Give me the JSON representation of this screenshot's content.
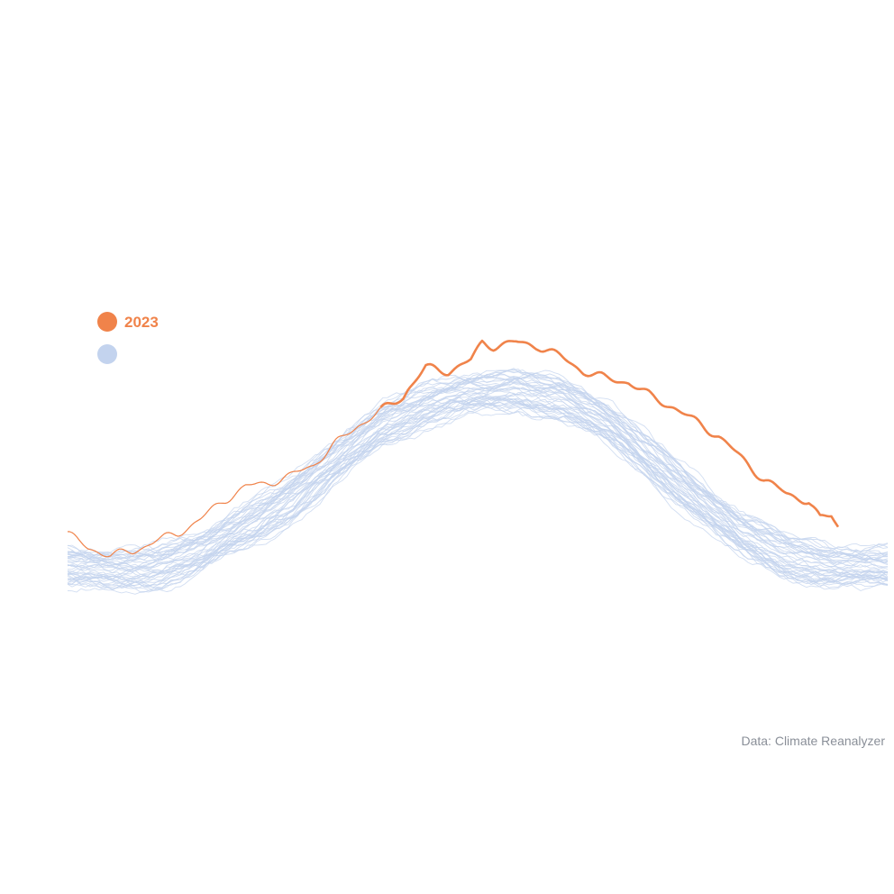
{
  "chart_data": {
    "type": "line",
    "title": "",
    "xlabel": "",
    "ylabel": "",
    "grid": false,
    "legend": {
      "position": "top-left",
      "entries": [
        {
          "label": "2023",
          "color": "#f0834a"
        },
        {
          "label": "",
          "color": "#c3d3ee"
        }
      ]
    },
    "source": "Data: Climate Reanalyzer",
    "xlim": [
      1,
      365
    ],
    "ylim": [
      0,
      100
    ],
    "highlight_series": {
      "name": "2023",
      "color": "#f0834a",
      "x": [
        1,
        10,
        20,
        30,
        40,
        50,
        60,
        70,
        80,
        90,
        100,
        110,
        120,
        130,
        140,
        150,
        152,
        160,
        170,
        180,
        185,
        190,
        200,
        210,
        220,
        230,
        240,
        250,
        260,
        270,
        280,
        290,
        300,
        310,
        320,
        330,
        335,
        340,
        343
      ],
      "values": [
        37,
        33,
        31,
        32,
        35,
        37,
        41,
        46,
        50,
        51,
        53,
        56,
        62,
        67,
        71,
        75,
        77,
        83,
        82,
        85,
        90,
        89,
        90,
        89,
        86,
        82,
        80,
        79,
        75,
        72,
        68,
        64,
        58,
        52,
        48,
        46,
        41,
        42,
        39
      ]
    },
    "background_series": {
      "label": "",
      "color": "#c3d3ee",
      "count": 44,
      "baseline": {
        "x": [
          1,
          20,
          40,
          60,
          80,
          100,
          120,
          140,
          160,
          180,
          200,
          220,
          240,
          260,
          280,
          300,
          320,
          340,
          365
        ],
        "values": [
          27,
          26,
          27,
          31,
          38,
          46,
          56,
          66,
          72,
          75,
          76,
          74,
          67,
          57,
          46,
          36,
          30,
          27,
          27
        ]
      },
      "spread": 5
    }
  }
}
